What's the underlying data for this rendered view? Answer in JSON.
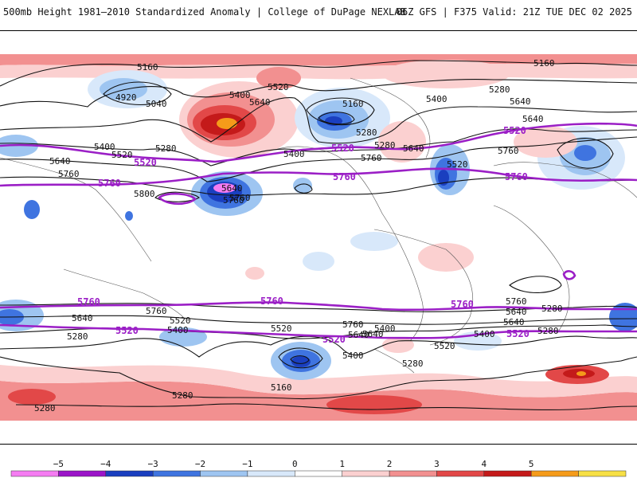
{
  "header": {
    "title": "500mb Height 1981–2010 Standardized Anomaly | College of DuPage NEXLAB",
    "run_info": "06Z GFS | F375 Valid: 21Z TUE DEC 02 2025"
  },
  "contour_labels": {
    "black": [
      "5160",
      "4920",
      "5040",
      "5400",
      "5520",
      "5640",
      "5280",
      "5400",
      "5520",
      "5640",
      "5760",
      "5800",
      "5760",
      "5160",
      "5280",
      "5400",
      "5280",
      "5640",
      "5760",
      "5520",
      "5640",
      "5400",
      "5160",
      "5280",
      "5760",
      "5640",
      "5640",
      "5760",
      "5640",
      "5400",
      "5280",
      "5520",
      "5760",
      "5640",
      "5400",
      "5520",
      "5400",
      "5280",
      "5160",
      "5280",
      "5520",
      "5280",
      "5400",
      "5640",
      "5760",
      "5640",
      "5280",
      "5280"
    ],
    "purple": [
      "5760",
      "5520",
      "5760",
      "5520",
      "5520",
      "5760",
      "5760",
      "5760",
      "5760",
      "5520",
      "5520",
      "5520"
    ],
    "highlight": [
      "5640",
      "5760"
    ]
  },
  "colorbar": {
    "ticks": [
      "−5",
      "−4",
      "−3",
      "−2",
      "−1",
      "0",
      "1",
      "2",
      "3",
      "4",
      "5"
    ],
    "colors": [
      "#f57cf2",
      "#9b14c8",
      "#1a3fbf",
      "#3f74e0",
      "#9ec5f1",
      "#d8e8fa",
      "#ffffff",
      "#fbd0d0",
      "#f29090",
      "#e24848",
      "#c41a1a",
      "#f59b1a",
      "#f7e046"
    ]
  }
}
